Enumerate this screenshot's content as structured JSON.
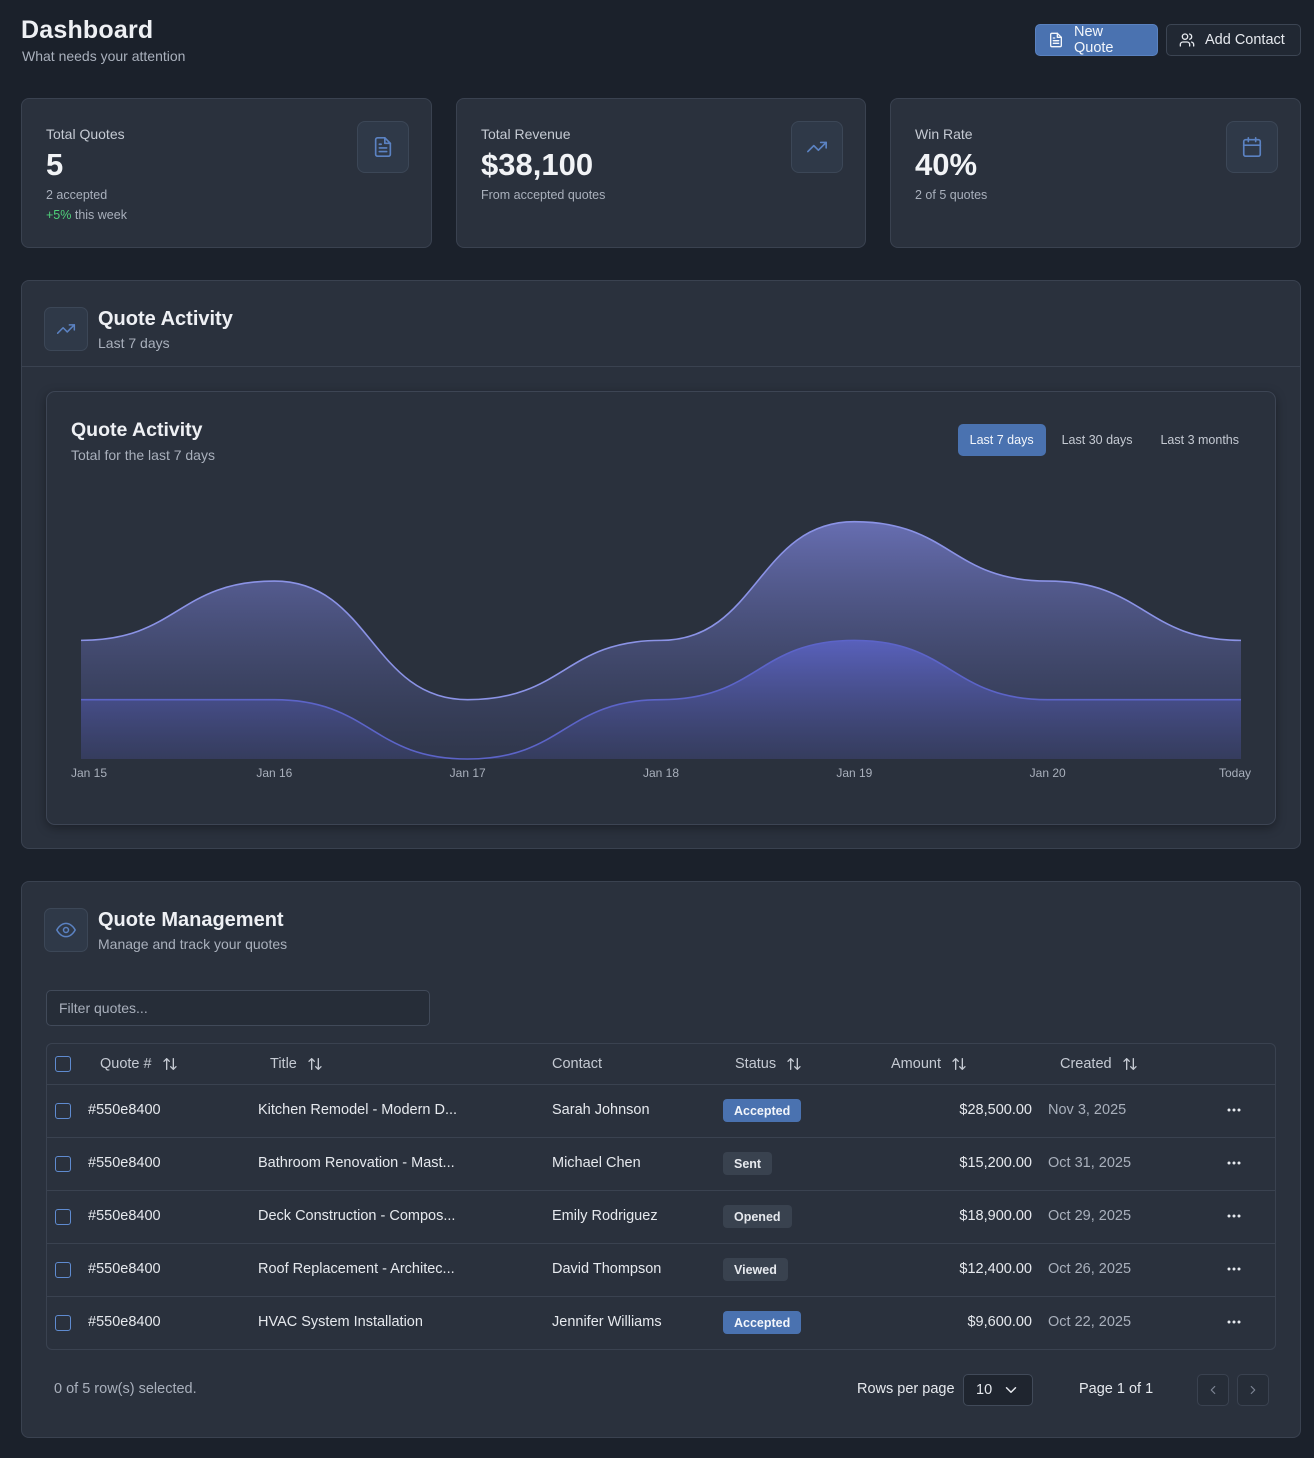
{
  "header": {
    "title": "Dashboard",
    "subtitle": "What needs your attention",
    "new_quote_label": "New Quote",
    "add_contact_label": "Add Contact"
  },
  "stats": [
    {
      "label": "Total Quotes",
      "value": "5",
      "sub": "2 accepted",
      "trend": "+5%",
      "trend_suffix": " this week",
      "icon": "file-text-icon"
    },
    {
      "label": "Total Revenue",
      "value": "$38,100",
      "sub": "From accepted quotes",
      "icon": "trending-up-icon"
    },
    {
      "label": "Win Rate",
      "value": "40%",
      "sub": "2 of 5 quotes",
      "icon": "calendar-icon"
    }
  ],
  "activity": {
    "title": "Quote Activity",
    "subtitle": "Last 7 days",
    "chart_title": "Quote Activity",
    "chart_subtitle": "Total for the last 7 days",
    "ranges": [
      "Last 7 days",
      "Last 30 days",
      "Last 3 months"
    ],
    "active_range": "Last 7 days"
  },
  "chart_data": {
    "type": "area",
    "categories": [
      "Jan 15",
      "Jan 16",
      "Jan 17",
      "Jan 18",
      "Jan 19",
      "Jan 20",
      "Today"
    ],
    "series": [
      {
        "values": [
          2,
          3,
          1,
          2,
          4,
          3,
          2
        ],
        "color": "#8b93e6"
      },
      {
        "values": [
          1,
          1,
          0,
          1,
          2,
          1,
          1
        ],
        "color": "#5c64c8"
      }
    ],
    "ylim": [
      0,
      4.4
    ],
    "grid": false
  },
  "management": {
    "title": "Quote Management",
    "subtitle": "Manage and track your quotes",
    "filter_placeholder": "Filter quotes...",
    "columns": [
      "Quote #",
      "Title",
      "Contact",
      "Status",
      "Amount",
      "Created"
    ],
    "rows": [
      {
        "id": "#550e8400",
        "title": "Kitchen Remodel - Modern D...",
        "contact": "Sarah Johnson",
        "status": "Accepted",
        "amount": "$28,500.00",
        "created": "Nov 3, 2025"
      },
      {
        "id": "#550e8400",
        "title": "Bathroom Renovation - Mast...",
        "contact": "Michael Chen",
        "status": "Sent",
        "amount": "$15,200.00",
        "created": "Oct 31, 2025"
      },
      {
        "id": "#550e8400",
        "title": "Deck Construction - Compos...",
        "contact": "Emily Rodriguez",
        "status": "Opened",
        "amount": "$18,900.00",
        "created": "Oct 29, 2025"
      },
      {
        "id": "#550e8400",
        "title": "Roof Replacement - Architec...",
        "contact": "David Thompson",
        "status": "Viewed",
        "amount": "$12,400.00",
        "created": "Oct 26, 2025"
      },
      {
        "id": "#550e8400",
        "title": "HVAC System Installation",
        "contact": "Jennifer Williams",
        "status": "Accepted",
        "amount": "$9,600.00",
        "created": "Oct 22, 2025"
      }
    ],
    "selection_text": "0 of 5 row(s) selected.",
    "rows_per_page_label": "Rows per page",
    "rows_per_page_value": "10",
    "page_text": "Page 1 of 1"
  },
  "colors": {
    "accent": "#4a72b0",
    "positive": "#4fd07a",
    "background": "#1b212b",
    "card": "#2a313d"
  }
}
